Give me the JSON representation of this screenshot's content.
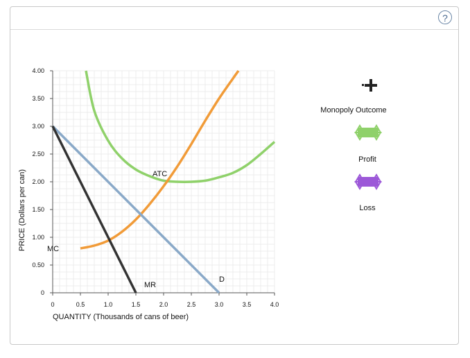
{
  "help_icon": "?",
  "chart_data": {
    "type": "line",
    "xlabel": "QUANTITY (Thousands of cans of beer)",
    "ylabel": "PRICE (Dollars per can)",
    "xlim": [
      0,
      4.0
    ],
    "ylim": [
      0,
      4.0
    ],
    "x_ticks": [
      "0",
      "0.5",
      "1.0",
      "1.5",
      "2.0",
      "2.5",
      "3.0",
      "3.5",
      "4.0"
    ],
    "y_ticks": [
      "0",
      "0.50",
      "1.00",
      "1.50",
      "2.00",
      "2.50",
      "3.00",
      "3.50",
      "4.00"
    ],
    "grid": true,
    "series": [
      {
        "name": "ATC",
        "color": "#8fd16a",
        "x": [
          0.6,
          0.75,
          1.0,
          1.25,
          1.5,
          1.75,
          2.0,
          2.25,
          2.5,
          2.75,
          3.0,
          3.25,
          3.5,
          3.75,
          4.0
        ],
        "y": [
          4.0,
          3.28,
          2.74,
          2.42,
          2.22,
          2.1,
          2.02,
          2.0,
          2.0,
          2.02,
          2.08,
          2.16,
          2.3,
          2.5,
          2.72
        ]
      },
      {
        "name": "MC",
        "color": "#f19b38",
        "x": [
          0.5,
          0.75,
          1.0,
          1.25,
          1.5,
          1.75,
          2.0,
          2.25,
          2.5,
          2.75,
          3.0,
          3.25,
          3.35
        ],
        "y": [
          0.8,
          0.85,
          0.94,
          1.1,
          1.32,
          1.6,
          1.92,
          2.28,
          2.68,
          3.1,
          3.5,
          3.86,
          4.0
        ]
      },
      {
        "name": "D",
        "color": "#8aa9c8",
        "x": [
          0,
          3.0
        ],
        "y": [
          3.0,
          0
        ]
      },
      {
        "name": "MR",
        "color": "#333333",
        "x": [
          0,
          1.5
        ],
        "y": [
          3.0,
          0
        ]
      }
    ],
    "labels": [
      {
        "text": "ATC",
        "x": 1.8,
        "y": 2.1
      },
      {
        "text": "MC",
        "x": -0.1,
        "y": 0.75
      },
      {
        "text": "D",
        "x": 3.0,
        "y": 0.2
      },
      {
        "text": "MR",
        "x": 1.65,
        "y": 0.1
      }
    ]
  },
  "legend": {
    "items": [
      {
        "label": "Monopoly Outcome",
        "icon": "black-cross-marker",
        "color": "#222222"
      },
      {
        "label": "Profit",
        "icon": "green-rectangle-tool",
        "color": "#8fd16a"
      },
      {
        "label": "Loss",
        "icon": "purple-rectangle-tool",
        "color": "#9c58d8"
      }
    ]
  }
}
